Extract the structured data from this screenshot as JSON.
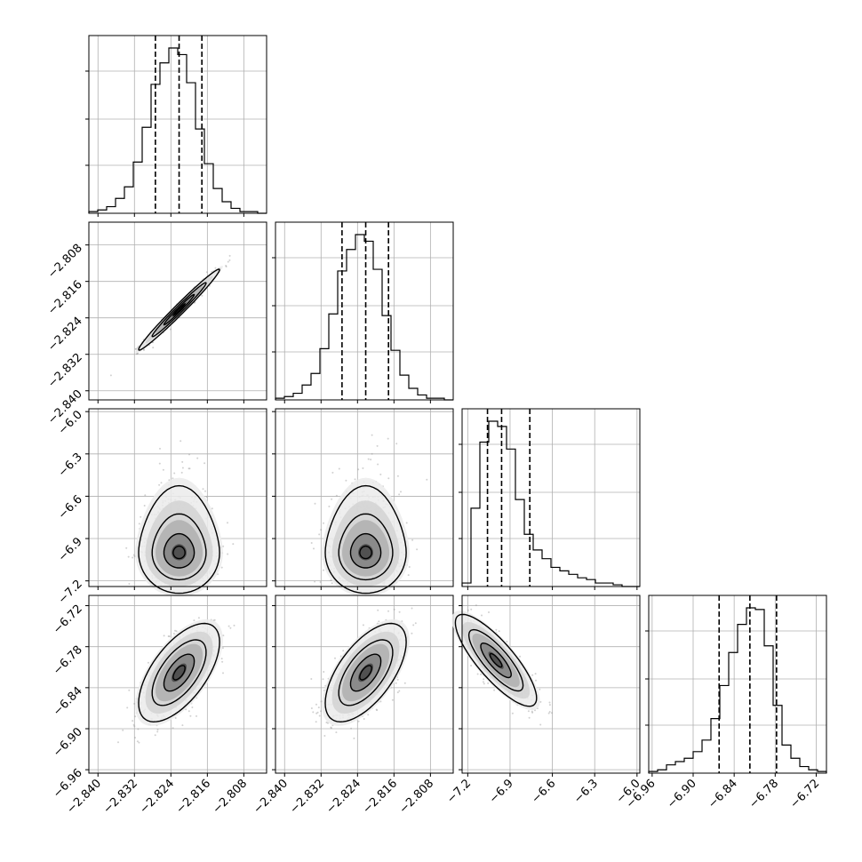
{
  "chart_data": {
    "type": "corner",
    "grid": true,
    "colors": {
      "line": "#000000",
      "grid": "#b0b0b0",
      "scatter": "#9a9a9a"
    },
    "parameters": [
      {
        "range": [
          -2.842,
          -2.803
        ],
        "ticks": [
          "−2.840",
          "−2.832",
          "−2.824",
          "−2.816",
          "−2.808"
        ],
        "tick_values": [
          -2.84,
          -2.832,
          -2.824,
          -2.816,
          -2.808
        ]
      },
      {
        "range": [
          -2.842,
          -2.803
        ],
        "ticks": [
          "−2.840",
          "−2.832",
          "−2.824",
          "−2.816",
          "−2.808"
        ],
        "tick_values": [
          -2.84,
          -2.832,
          -2.824,
          -2.816,
          -2.808
        ]
      },
      {
        "range": [
          -7.24,
          -5.98
        ],
        "ticks": [
          "−7.2",
          "−6.9",
          "−6.6",
          "−6.3",
          "−6.0"
        ],
        "tick_values": [
          -7.2,
          -6.9,
          -6.6,
          -6.3,
          -6.0
        ]
      },
      {
        "range": [
          -6.965,
          -6.705
        ],
        "ticks": [
          "−6.96",
          "−6.90",
          "−6.84",
          "−6.78",
          "−6.72"
        ],
        "tick_values": [
          -6.96,
          -6.9,
          -6.84,
          -6.78,
          -6.72
        ]
      }
    ],
    "histograms": [
      {
        "counts": [
          1,
          2,
          4,
          9,
          16,
          31,
          52,
          78,
          91,
          100,
          96,
          79,
          51,
          30,
          15,
          7,
          3,
          1,
          1,
          0
        ],
        "quantiles": [
          -2.8274,
          -2.8222,
          -2.8172
        ]
      },
      {
        "counts": [
          1,
          2,
          4,
          9,
          16,
          31,
          52,
          78,
          91,
          100,
          96,
          79,
          51,
          30,
          15,
          7,
          3,
          1,
          1,
          0
        ],
        "quantiles": [
          -2.8274,
          -2.8222,
          -2.8172
        ]
      },
      {
        "counts": [
          2,
          45,
          83,
          95,
          92,
          79,
          50,
          30,
          21,
          16,
          11,
          9,
          7,
          5,
          4,
          2,
          2,
          1,
          0,
          0
        ],
        "quantiles": [
          -7.06,
          -6.96,
          -6.76
        ]
      },
      {
        "counts": [
          1,
          2,
          5,
          7,
          9,
          13,
          20,
          33,
          53,
          73,
          90,
          100,
          99,
          77,
          41,
          17,
          9,
          4,
          2,
          1
        ],
        "quantiles": [
          -6.862,
          -6.817,
          -6.778
        ]
      }
    ],
    "pairs": [
      {
        "row": 1,
        "col": 0,
        "center": [
          -2.8222,
          -2.8222
        ],
        "sd": [
          0.0037,
          0.0037
        ],
        "rho": 0.985,
        "scatter_n": 900
      },
      {
        "row": 2,
        "col": 0,
        "center": [
          -2.8222,
          -7.0
        ],
        "sd": [
          0.0037,
          0.12
        ],
        "rho": 0.0,
        "skew_y": 0.45,
        "scatter_n": 1100
      },
      {
        "row": 2,
        "col": 1,
        "center": [
          -2.8222,
          -7.0
        ],
        "sd": [
          0.0037,
          0.12
        ],
        "rho": 0.0,
        "skew_y": 0.45,
        "scatter_n": 1100
      },
      {
        "row": 3,
        "col": 0,
        "center": [
          -2.8222,
          -6.818
        ],
        "sd": [
          0.0037,
          0.03
        ],
        "rho": 0.62,
        "scatter_n": 1100
      },
      {
        "row": 3,
        "col": 1,
        "center": [
          -2.8222,
          -6.818
        ],
        "sd": [
          0.0037,
          0.03
        ],
        "rho": 0.62,
        "scatter_n": 1100
      },
      {
        "row": 3,
        "col": 2,
        "center": [
          -7.0,
          -6.8
        ],
        "sd": [
          0.12,
          0.028
        ],
        "rho": -0.82,
        "scatter_n": 1100
      }
    ]
  }
}
